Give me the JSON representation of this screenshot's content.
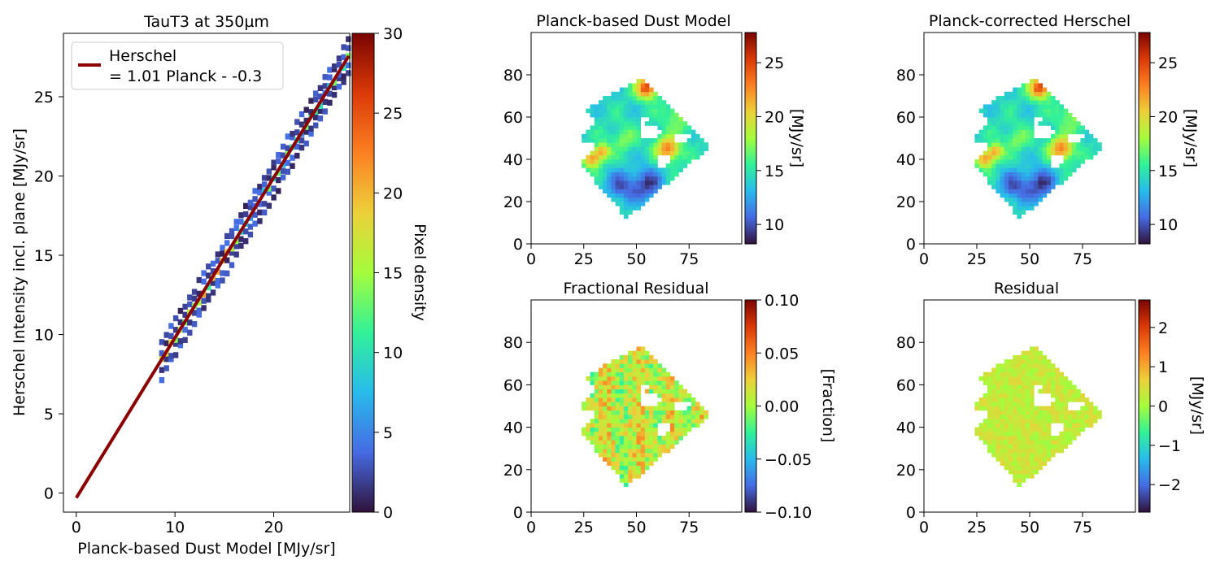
{
  "chart_data": [
    {
      "type": "heatmap",
      "title": "TauT3 at 350µm",
      "xlabel": "Planck-based Dust Model [MJy/sr]",
      "ylabel": "Herschel Intensity incl. plane [MJy/sr]",
      "xlim": [
        -1.3,
        27.7
      ],
      "ylim": [
        -1.2,
        29.0
      ],
      "xticks": [
        0,
        10,
        20
      ],
      "yticks": [
        0,
        5,
        10,
        15,
        20,
        25
      ],
      "colorbar": {
        "label": "Pixel density",
        "min": 0,
        "max": 30,
        "ticks": [
          0,
          5,
          10,
          15,
          20,
          25,
          30
        ],
        "colormap": "turbo"
      },
      "density_ridge": {
        "x_range": [
          8.4,
          27.6
        ],
        "slope": 1.01,
        "intercept": -0.3
      },
      "fit_line": {
        "slope": 1.01,
        "intercept": -0.3,
        "x_range": [
          0,
          27.6
        ],
        "color": "#8b0000"
      },
      "legend": {
        "placement": "top-left",
        "entries": [
          {
            "label_line1": "Herschel",
            "label_line2": "= 1.01 Planck - -0.3",
            "color": "#8b0000"
          }
        ]
      }
    },
    {
      "type": "heatmap",
      "title": "Planck-based Dust Model",
      "field": "intensity",
      "xlim": [
        0,
        100
      ],
      "ylim": [
        0,
        100
      ],
      "xticks": [
        0,
        25,
        50,
        75
      ],
      "yticks": [
        0,
        20,
        40,
        60,
        80
      ],
      "colorbar": {
        "label": "[MJy/sr]",
        "min": 8.2,
        "max": 27.8,
        "ticks": [
          "10",
          "15",
          "20",
          "25"
        ],
        "colormap": "turbo"
      }
    },
    {
      "type": "heatmap",
      "title": "Planck-corrected Herschel",
      "field": "intensity",
      "xlim": [
        0,
        100
      ],
      "ylim": [
        0,
        100
      ],
      "xticks": [
        0,
        25,
        50,
        75
      ],
      "yticks": [
        0,
        20,
        40,
        60,
        80
      ],
      "colorbar": {
        "label": "[MJy/sr]",
        "min": 8.2,
        "max": 27.8,
        "ticks": [
          "10",
          "15",
          "20",
          "25"
        ],
        "colormap": "turbo"
      }
    },
    {
      "type": "heatmap",
      "title": "Fractional Residual",
      "field": "fraction",
      "xlim": [
        0,
        100
      ],
      "ylim": [
        0,
        100
      ],
      "xticks": [
        0,
        25,
        50,
        75
      ],
      "yticks": [
        0,
        20,
        40,
        60,
        80
      ],
      "colorbar": {
        "label": "[Fraction]",
        "min": -0.1,
        "max": 0.1,
        "ticks": [
          "−0.10",
          "−0.05",
          "0.00",
          "0.05",
          "0.10"
        ],
        "colormap": "turbo"
      }
    },
    {
      "type": "heatmap",
      "title": "Residual",
      "field": "residual",
      "xlim": [
        0,
        100
      ],
      "ylim": [
        0,
        100
      ],
      "xticks": [
        0,
        25,
        50,
        75
      ],
      "yticks": [
        0,
        20,
        40,
        60,
        80
      ],
      "colorbar": {
        "label": "[MJy/sr]",
        "min": -2.7,
        "max": 2.7,
        "ticks": [
          "−2",
          "−1",
          "0",
          "1",
          "2"
        ],
        "colormap": "turbo"
      }
    }
  ],
  "map_footprint": {
    "outline": [
      [
        45.5,
        12
      ],
      [
        23,
        38
      ],
      [
        31,
        47
      ],
      [
        22,
        50
      ],
      [
        31,
        58
      ],
      [
        26,
        64
      ],
      [
        53,
        79
      ],
      [
        85,
        46
      ]
    ],
    "holes": [
      [
        [
          52,
          56
        ],
        [
          58,
          57
        ],
        [
          63,
          53
        ],
        [
          59,
          49
        ],
        [
          53,
          51
        ],
        [
          51,
          54
        ]
      ],
      [
        [
          67,
          52
        ],
        [
          78,
          52
        ],
        [
          72,
          48
        ],
        [
          68,
          49
        ]
      ],
      [
        [
          61,
          41
        ],
        [
          65,
          43
        ],
        [
          66,
          38
        ],
        [
          62,
          35
        ],
        [
          59,
          38
        ]
      ],
      [
        [
          51,
          56
        ],
        [
          54,
          57
        ],
        [
          56,
          60
        ],
        [
          52,
          61
        ]
      ]
    ]
  }
}
